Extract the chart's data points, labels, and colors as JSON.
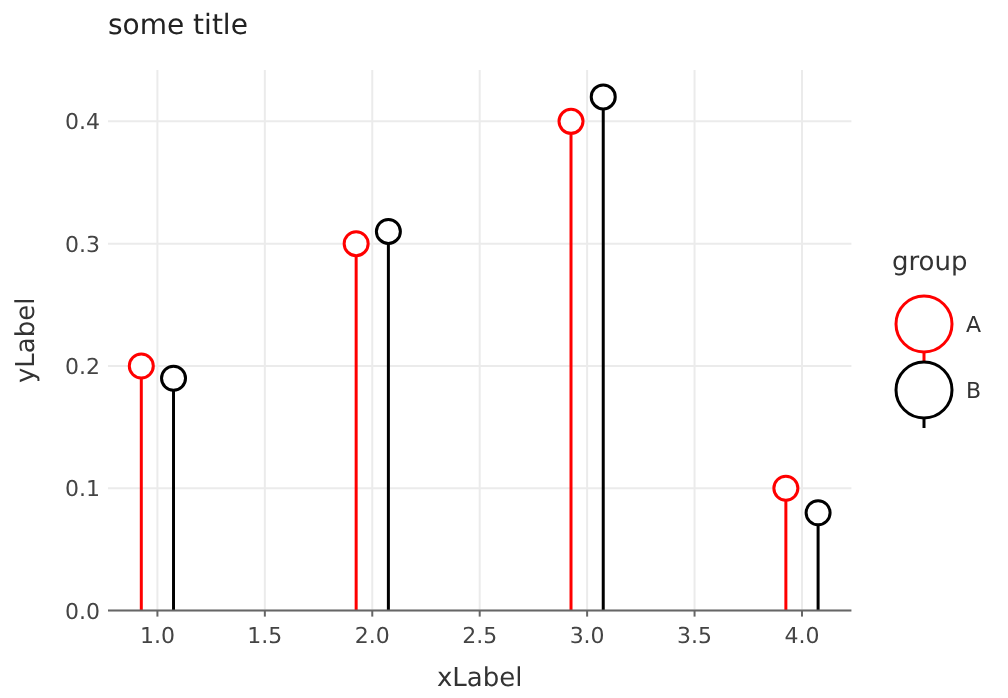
{
  "chart_data": {
    "type": "lollipop",
    "title": "some title",
    "xlabel": "xLabel",
    "ylabel": "yLabel",
    "legend_title": "group",
    "xlim": [
      0.77,
      4.23
    ],
    "xticks": [
      {
        "value": 1,
        "label": "1.0"
      },
      1.5,
      {
        "value": 2,
        "label": "2.0"
      },
      2.5,
      {
        "value": 3,
        "label": "3.0"
      },
      3.5,
      {
        "value": 4,
        "label": "4.0"
      }
    ],
    "ylim": [
      0,
      0.442
    ],
    "yticks": [
      {
        "value": 0,
        "label": "0.0"
      },
      0.1,
      0.2,
      0.3,
      0.4
    ],
    "grid": true,
    "legend": "right",
    "marker": "circle",
    "series": [
      {
        "name": "A",
        "color": "#ff0000",
        "x": [
          0.925,
          1.925,
          2.925,
          3.925
        ],
        "values": [
          0.2,
          0.3,
          0.4,
          0.1
        ]
      },
      {
        "name": "B",
        "color": "#000000",
        "x": [
          1.075,
          2.075,
          3.075,
          4.075
        ],
        "values": [
          0.19,
          0.31,
          0.42,
          0.08
        ]
      }
    ]
  }
}
